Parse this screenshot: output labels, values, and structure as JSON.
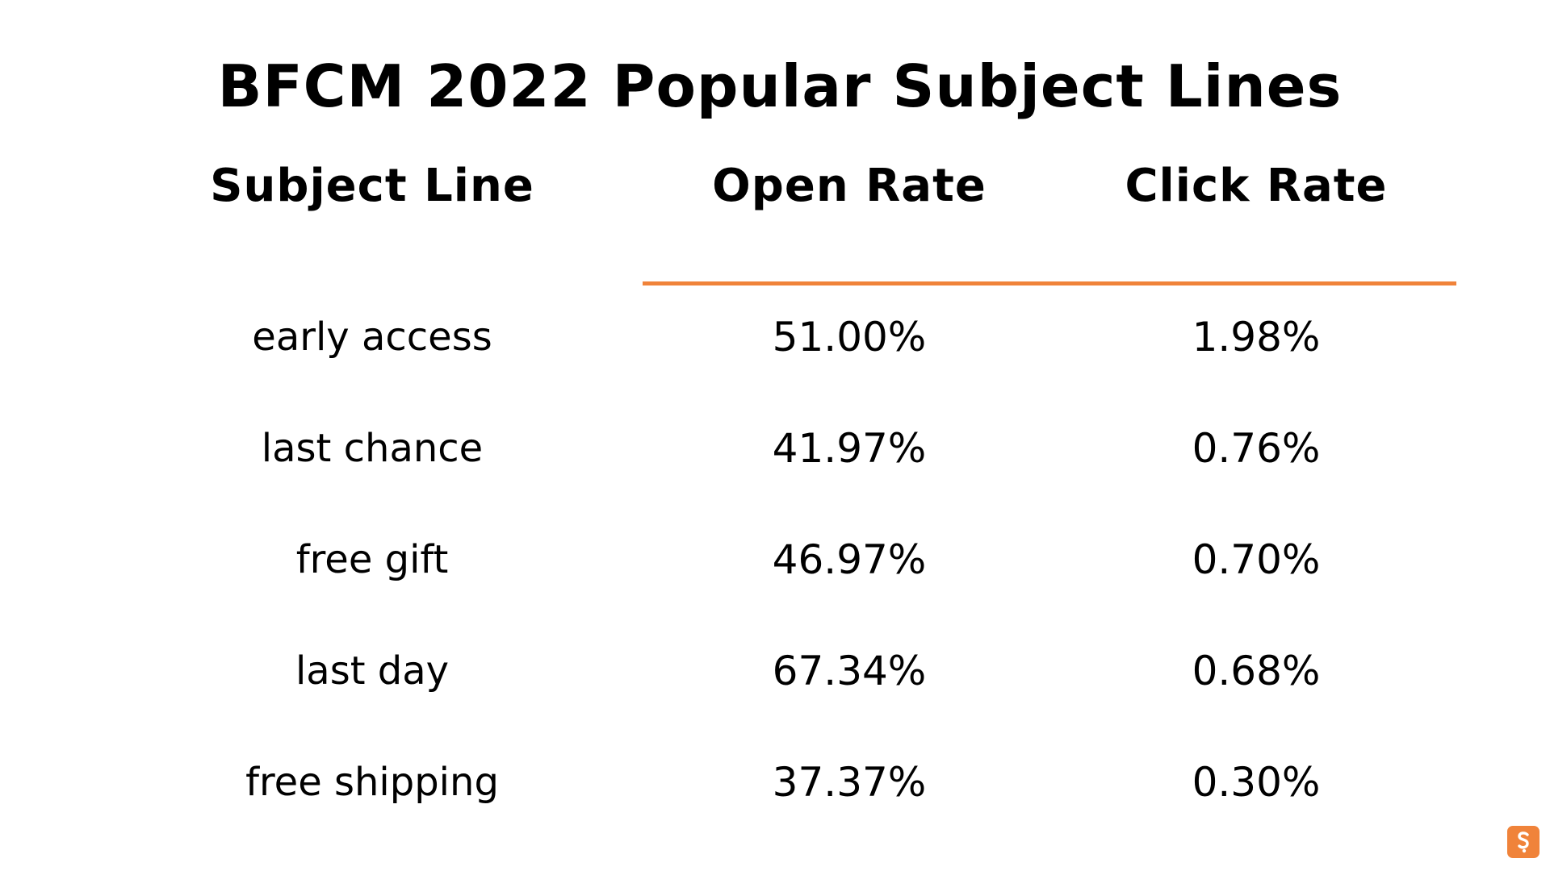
{
  "title": "BFCM 2022 Popular Subject Lines",
  "table": {
    "headers": [
      "Subject Line",
      "Open Rate",
      "Click Rate"
    ],
    "rows": [
      [
        "early access",
        "51.00%",
        "1.98%"
      ],
      [
        "last chance",
        "41.97%",
        "0.76%"
      ],
      [
        "free gift",
        "46.97%",
        "0.70%"
      ],
      [
        "last day",
        "67.34%",
        "0.68%"
      ],
      [
        "free shipping",
        "37.37%",
        "0.30%"
      ]
    ]
  },
  "colors": {
    "accent": "#f0833a",
    "text": "#000000",
    "background": "#ffffff"
  },
  "logo_icon": "brand-s-logo-icon"
}
